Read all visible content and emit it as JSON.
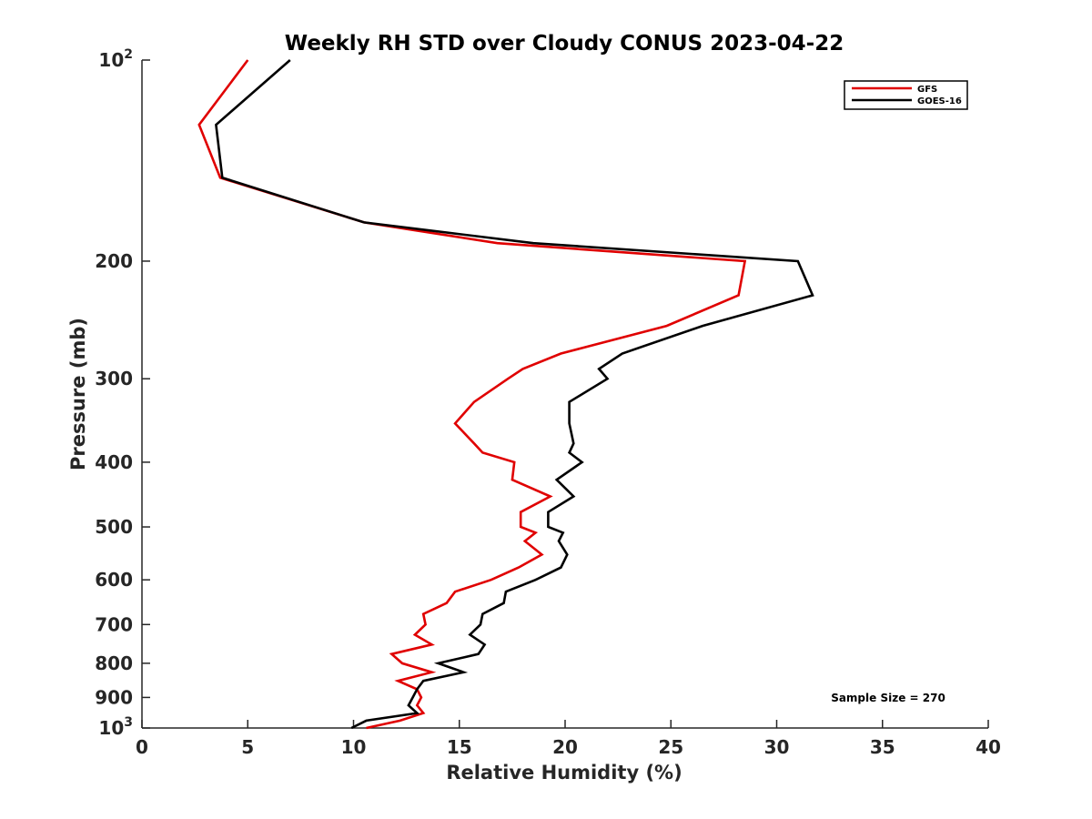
{
  "chart_data": {
    "type": "line",
    "title": "Weekly RH STD over Cloudy CONUS 2023-04-22",
    "xlabel": "Relative Humidity (%)",
    "ylabel": "Pressure (mb)",
    "xlim": [
      0,
      40
    ],
    "ylim": [
      100,
      1000
    ],
    "yscale": "log",
    "yreverse": true,
    "grid": false,
    "xticks": [
      0,
      5,
      10,
      15,
      20,
      25,
      30,
      35,
      40
    ],
    "yticks": [
      {
        "value": 100,
        "base": "10",
        "exp": "2"
      },
      {
        "value": 200,
        "label": "200"
      },
      {
        "value": 300,
        "label": "300"
      },
      {
        "value": 400,
        "label": "400"
      },
      {
        "value": 500,
        "label": "500"
      },
      {
        "value": 600,
        "label": "600"
      },
      {
        "value": 700,
        "label": "700"
      },
      {
        "value": 800,
        "label": "800"
      },
      {
        "value": 900,
        "label": "900"
      },
      {
        "value": 1000,
        "base": "10",
        "exp": "3"
      }
    ],
    "legend": {
      "position": "top-right"
    },
    "annotation": "Sample Size = 270",
    "series": [
      {
        "name": "GFS",
        "color": "#e00000",
        "points": [
          [
            5.0,
            100
          ],
          [
            2.7,
            125
          ],
          [
            3.7,
            150
          ],
          [
            10.5,
            175
          ],
          [
            16.8,
            188
          ],
          [
            28.5,
            200
          ],
          [
            28.2,
            225
          ],
          [
            24.8,
            250
          ],
          [
            19.8,
            275
          ],
          [
            18.0,
            290
          ],
          [
            17.3,
            300
          ],
          [
            15.7,
            325
          ],
          [
            14.8,
            350
          ],
          [
            15.7,
            375
          ],
          [
            16.1,
            387
          ],
          [
            17.6,
            400
          ],
          [
            17.5,
            425
          ],
          [
            19.3,
            450
          ],
          [
            17.9,
            475
          ],
          [
            17.9,
            500
          ],
          [
            18.6,
            510
          ],
          [
            18.1,
            525
          ],
          [
            18.9,
            550
          ],
          [
            17.8,
            575
          ],
          [
            16.5,
            600
          ],
          [
            14.8,
            625
          ],
          [
            14.4,
            650
          ],
          [
            13.3,
            675
          ],
          [
            13.4,
            700
          ],
          [
            12.9,
            725
          ],
          [
            13.7,
            750
          ],
          [
            11.8,
            775
          ],
          [
            12.3,
            800
          ],
          [
            13.7,
            825
          ],
          [
            12.1,
            850
          ],
          [
            13.0,
            875
          ],
          [
            13.2,
            900
          ],
          [
            13.0,
            925
          ],
          [
            13.3,
            950
          ],
          [
            12.2,
            975
          ],
          [
            10.6,
            1000
          ]
        ]
      },
      {
        "name": "GOES-16",
        "color": "#000000",
        "points": [
          [
            7.0,
            100
          ],
          [
            3.5,
            125
          ],
          [
            3.8,
            150
          ],
          [
            10.5,
            175
          ],
          [
            18.5,
            188
          ],
          [
            31.0,
            200
          ],
          [
            31.7,
            225
          ],
          [
            26.5,
            250
          ],
          [
            22.7,
            275
          ],
          [
            21.6,
            290
          ],
          [
            22.0,
            300
          ],
          [
            20.2,
            325
          ],
          [
            20.2,
            350
          ],
          [
            20.4,
            375
          ],
          [
            20.2,
            387
          ],
          [
            20.8,
            400
          ],
          [
            19.6,
            425
          ],
          [
            20.4,
            450
          ],
          [
            19.2,
            475
          ],
          [
            19.2,
            500
          ],
          [
            19.9,
            510
          ],
          [
            19.7,
            525
          ],
          [
            20.1,
            550
          ],
          [
            19.8,
            575
          ],
          [
            18.6,
            600
          ],
          [
            17.2,
            625
          ],
          [
            17.1,
            650
          ],
          [
            16.1,
            675
          ],
          [
            16.0,
            700
          ],
          [
            15.5,
            725
          ],
          [
            16.2,
            750
          ],
          [
            15.9,
            775
          ],
          [
            14.0,
            800
          ],
          [
            15.2,
            825
          ],
          [
            13.3,
            850
          ],
          [
            13.0,
            875
          ],
          [
            12.8,
            900
          ],
          [
            12.6,
            925
          ],
          [
            13.0,
            950
          ],
          [
            10.6,
            975
          ],
          [
            9.9,
            1000
          ]
        ]
      }
    ]
  }
}
